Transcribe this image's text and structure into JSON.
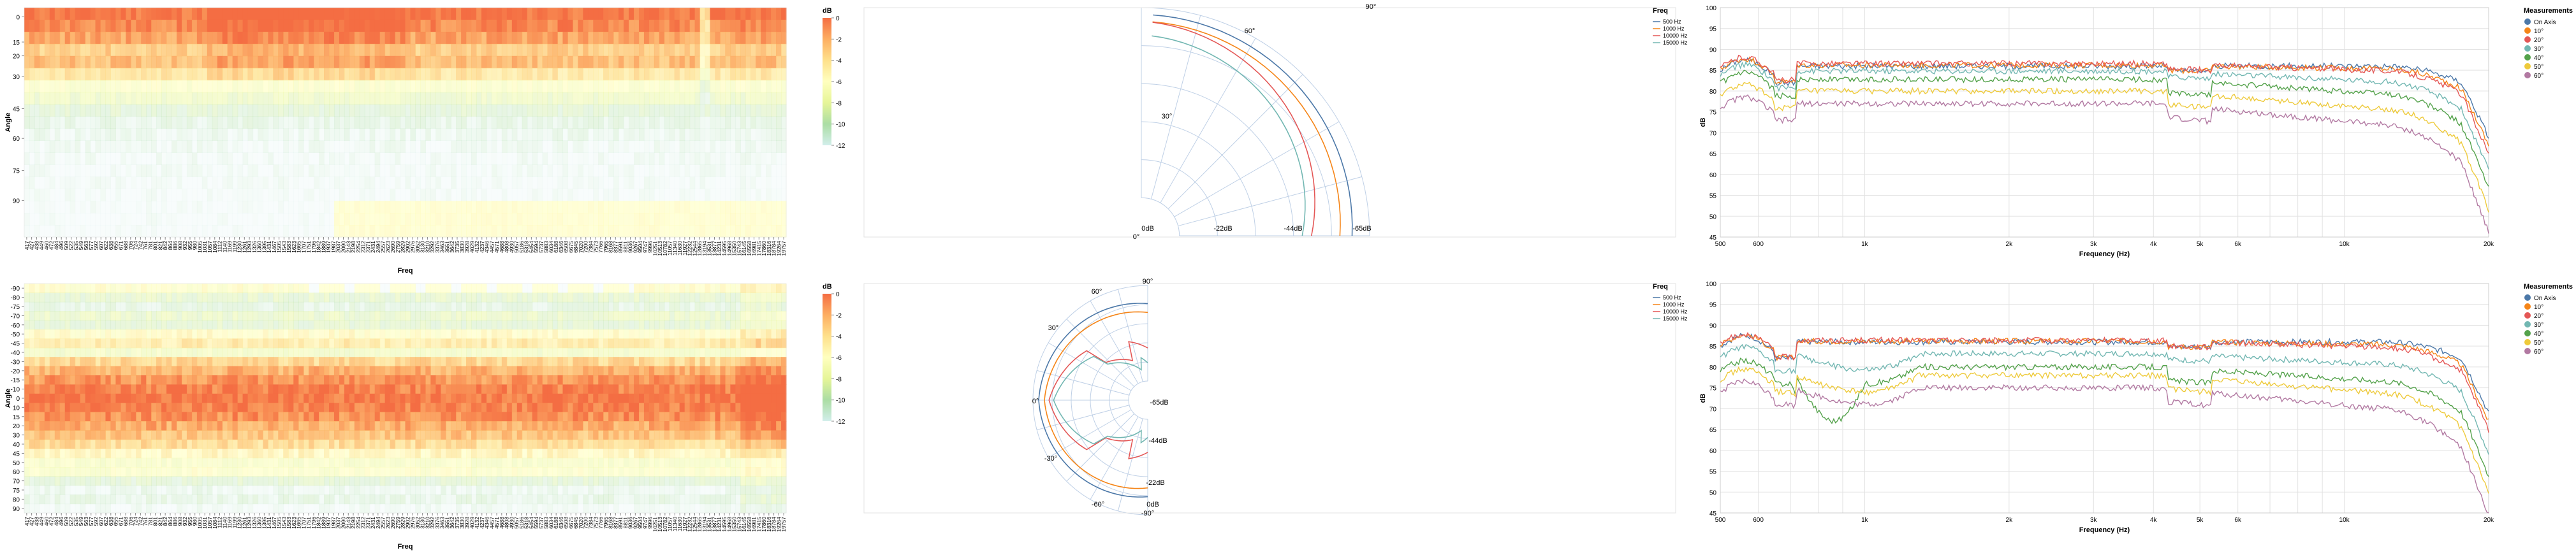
{
  "colors": {
    "on_axis": "#4c78a8",
    "deg10": "#f58518",
    "deg20": "#e45756",
    "deg30": "#72b7b2",
    "deg40": "#54a24b",
    "deg50": "#eeca3b",
    "deg60": "#b279a2"
  },
  "chart_data": [
    {
      "type": "heatmap",
      "panel": "horizontal-heatmap",
      "xlabel": "Freq",
      "ylabel": "Angle",
      "y_ticks": [
        "0",
        "15",
        "20",
        "30",
        "45",
        "60",
        "75",
        "90"
      ],
      "x_ticks": [
        "417",
        "427",
        "438",
        "449",
        "460",
        "472",
        "484",
        "496",
        "509",
        "522",
        "535",
        "549",
        "563",
        "577",
        "592",
        "607",
        "622",
        "638",
        "655",
        "671",
        "688",
        "706",
        "724",
        "742",
        "761",
        "781",
        "801",
        "821",
        "842",
        "864",
        "886",
        "908",
        "932",
        "955",
        "980",
        "1005",
        "1031",
        "1057",
        "1084",
        "1112",
        "1140",
        "1169",
        "1199",
        "1230",
        "1261",
        "1293",
        "1326",
        "1360",
        "1395",
        "1431",
        "1467",
        "1505",
        "1543",
        "1583",
        "1623",
        "1665",
        "1707",
        "1751",
        "1796",
        "1842",
        "1889",
        "1937",
        "1987",
        "2037",
        "2090",
        "2143",
        "2198",
        "2254",
        "2312",
        "2371",
        "2431",
        "2494",
        "2557",
        "2623",
        "2690",
        "2759",
        "2829",
        "2902",
        "2976",
        "3052",
        "3130",
        "3210",
        "3292",
        "3376",
        "3463",
        "3551",
        "3642",
        "3735",
        "3830",
        "3928",
        "4029",
        "4132",
        "4237",
        "4346",
        "4457",
        "4571",
        "4688",
        "4808",
        "4930",
        "5057",
        "5186",
        "5318",
        "5454",
        "5594",
        "5737",
        "5883",
        "6034",
        "6188",
        "6346",
        "6508",
        "6675",
        "6845",
        "7020",
        "7200",
        "7384",
        "7573",
        "7766",
        "7965",
        "8168",
        "8377",
        "8591",
        "8811",
        "9036",
        "9267",
        "9504",
        "9747",
        "9996",
        "10251",
        "10513",
        "10782",
        "11057",
        "11340",
        "11630",
        "11927",
        "12232",
        "12544",
        "12865",
        "13194",
        "13531",
        "13877",
        "14231",
        "14595",
        "14968",
        "15350",
        "15743",
        "16145",
        "16558",
        "16981",
        "17415",
        "17860",
        "18316",
        "18784",
        "19264",
        "19757"
      ],
      "legend": {
        "title": "dB",
        "ticks": [
          "0",
          "-2",
          "-4",
          "-6",
          "-8",
          "-10",
          "-12"
        ]
      }
    },
    {
      "type": "polar",
      "panel": "horizontal-polar",
      "angle_labels": [
        "90°",
        "60°",
        "30°",
        "0°"
      ],
      "radius_labels": [
        "0dB",
        "-22dB",
        "-44dB",
        "-65dB"
      ],
      "legend_title": "Freq",
      "series": [
        {
          "name": "500 Hz",
          "color": "#4c78a8"
        },
        {
          "name": "1000 Hz",
          "color": "#f58518"
        },
        {
          "name": "10000 Hz",
          "color": "#e45756"
        },
        {
          "name": "15000 Hz",
          "color": "#72b7b2"
        }
      ]
    },
    {
      "type": "line",
      "panel": "horizontal-spl",
      "xlabel": "Frequency (Hz)",
      "ylabel": "dB",
      "x_scale": "log",
      "xlim": [
        500,
        20000
      ],
      "ylim": [
        45,
        100
      ],
      "x_ticks": [
        "500",
        "600",
        "1k",
        "2k",
        "3k",
        "4k",
        "5k",
        "6k",
        "10k",
        "20k"
      ],
      "y_ticks": [
        "100",
        "95",
        "90",
        "85",
        "80",
        "75",
        "70",
        "65",
        "60",
        "55",
        "50",
        "45"
      ],
      "legend_title": "Measurements",
      "series": [
        {
          "name": "On Axis",
          "color": "#4c78a8",
          "base": 86.0
        },
        {
          "name": "10°",
          "color": "#f58518",
          "base": 86.2
        },
        {
          "name": "20°",
          "color": "#e45756",
          "base": 86.6
        },
        {
          "name": "30°",
          "color": "#72b7b2",
          "base": 84.8
        },
        {
          "name": "40°",
          "color": "#54a24b",
          "base": 82.8
        },
        {
          "name": "50°",
          "color": "#eeca3b",
          "base": 80.0
        },
        {
          "name": "60°",
          "color": "#b279a2",
          "base": 77.0
        }
      ]
    },
    {
      "type": "heatmap",
      "panel": "vertical-heatmap",
      "xlabel": "Freq",
      "ylabel": "Angle",
      "y_ticks": [
        "-90",
        "-80",
        "-75",
        "-70",
        "-60",
        "-50",
        "-45",
        "-40",
        "-30",
        "-20",
        "-15",
        "-10",
        "0",
        "10",
        "15",
        "20",
        "30",
        "40",
        "45",
        "50",
        "60",
        "70",
        "75",
        "80",
        "90"
      ],
      "legend": {
        "title": "dB",
        "ticks": [
          "0",
          "-2",
          "-4",
          "-6",
          "-8",
          "-10",
          "-12"
        ]
      }
    },
    {
      "type": "polar",
      "panel": "vertical-polar",
      "angle_labels": [
        "90°",
        "60°",
        "30°",
        "0°",
        "-30°",
        "-60°",
        "-90°"
      ],
      "radius_labels": [
        "-65dB",
        "-44dB",
        "-22dB",
        "0dB"
      ],
      "legend_title": "Freq",
      "series": [
        {
          "name": "500 Hz",
          "color": "#4c78a8"
        },
        {
          "name": "1000 Hz",
          "color": "#f58518"
        },
        {
          "name": "10000 Hz",
          "color": "#e45756"
        },
        {
          "name": "15000 Hz",
          "color": "#72b7b2"
        }
      ]
    },
    {
      "type": "line",
      "panel": "vertical-spl",
      "xlabel": "Frequency (Hz)",
      "ylabel": "dB",
      "x_scale": "log",
      "xlim": [
        500,
        20000
      ],
      "ylim": [
        45,
        100
      ],
      "x_ticks": [
        "500",
        "600",
        "1k",
        "2k",
        "3k",
        "4k",
        "5k",
        "6k",
        "10k",
        "20k"
      ],
      "y_ticks": [
        "100",
        "95",
        "90",
        "85",
        "80",
        "75",
        "70",
        "65",
        "60",
        "55",
        "50",
        "45"
      ],
      "legend_title": "Measurements",
      "series": [
        {
          "name": "On Axis",
          "color": "#4c78a8",
          "base": 86.0
        },
        {
          "name": "10°",
          "color": "#f58518",
          "base": 86.2
        },
        {
          "name": "20°",
          "color": "#e45756",
          "base": 86.4
        },
        {
          "name": "30°",
          "color": "#72b7b2",
          "base": 83.2
        },
        {
          "name": "40°",
          "color": "#54a24b",
          "base": 80.0
        },
        {
          "name": "50°",
          "color": "#eeca3b",
          "base": 78.0
        },
        {
          "name": "60°",
          "color": "#b279a2",
          "base": 75.0
        }
      ]
    }
  ]
}
